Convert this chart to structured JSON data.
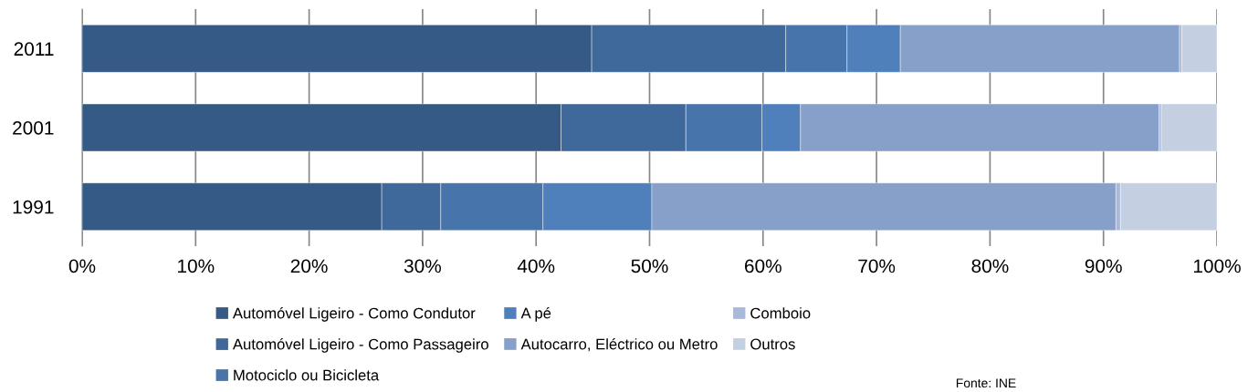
{
  "chart_data": {
    "type": "bar",
    "orientation": "horizontal",
    "stacked": true,
    "categories": [
      "2011",
      "2001",
      "1991"
    ],
    "series": [
      {
        "name": "Automóvel Ligeiro - Como Condutor",
        "color": "#355a85",
        "values": [
          44.9,
          42.2,
          26.4
        ]
      },
      {
        "name": "Automóvel Ligeiro - Como Passageiro",
        "color": "#3f699a",
        "values": [
          17.1,
          11.0,
          5.2
        ]
      },
      {
        "name": "Motociclo ou Bicicleta",
        "color": "#4775ab",
        "values": [
          5.4,
          6.7,
          9.0
        ]
      },
      {
        "name": "A pé",
        "color": "#4f80bc",
        "values": [
          4.7,
          3.4,
          9.6
        ]
      },
      {
        "name": "Autocarro, Eléctrico ou Metro",
        "color": "#86a0c9",
        "values": [
          24.6,
          31.6,
          40.9
        ]
      },
      {
        "name": "Comboio",
        "color": "#a8b9da",
        "values": [
          0.2,
          0.2,
          0.4
        ]
      },
      {
        "name": "Outros",
        "color": "#c4cfe1",
        "values": [
          3.1,
          4.9,
          8.5
        ]
      }
    ],
    "xlim": [
      0,
      100
    ],
    "xticks": [
      {
        "value": 0,
        "label": "0%"
      },
      {
        "value": 10,
        "label": "10%"
      },
      {
        "value": 20,
        "label": "20%"
      },
      {
        "value": 30,
        "label": "30%"
      },
      {
        "value": 40,
        "label": "40%"
      },
      {
        "value": 50,
        "label": "50%"
      },
      {
        "value": 60,
        "label": "60%"
      },
      {
        "value": 70,
        "label": "70%"
      },
      {
        "value": 80,
        "label": "80%"
      },
      {
        "value": 90,
        "label": "90%"
      },
      {
        "value": 100,
        "label": "100%"
      }
    ],
    "grid": "x",
    "legend": "bottom",
    "annotations": [
      "Fonte: INE"
    ]
  }
}
